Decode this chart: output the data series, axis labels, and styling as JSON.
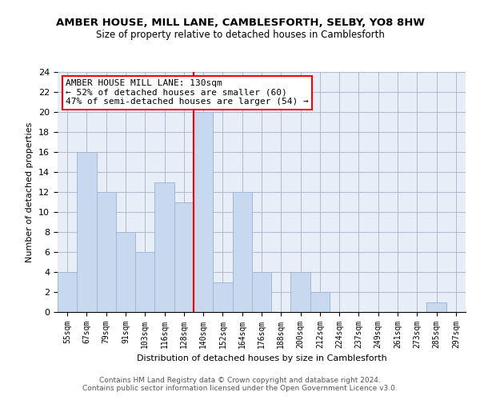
{
  "title1": "AMBER HOUSE, MILL LANE, CAMBLESFORTH, SELBY, YO8 8HW",
  "title2": "Size of property relative to detached houses in Camblesforth",
  "xlabel": "Distribution of detached houses by size in Camblesforth",
  "ylabel": "Number of detached properties",
  "categories": [
    "55sqm",
    "67sqm",
    "79sqm",
    "91sqm",
    "103sqm",
    "116sqm",
    "128sqm",
    "140sqm",
    "152sqm",
    "164sqm",
    "176sqm",
    "188sqm",
    "200sqm",
    "212sqm",
    "224sqm",
    "237sqm",
    "249sqm",
    "261sqm",
    "273sqm",
    "285sqm",
    "297sqm"
  ],
  "values": [
    4,
    16,
    12,
    8,
    6,
    13,
    11,
    20,
    3,
    12,
    4,
    0,
    4,
    2,
    0,
    0,
    0,
    0,
    0,
    1,
    0
  ],
  "bar_color": "#c8d8ee",
  "bar_edge_color": "#a0b8d8",
  "annotation_line0": "AMBER HOUSE MILL LANE: 130sqm",
  "annotation_line1": "← 52% of detached houses are smaller (60)",
  "annotation_line2": "47% of semi-detached houses are larger (54) →",
  "annotation_box_facecolor": "white",
  "annotation_box_edgecolor": "red",
  "vline_color": "red",
  "vline_x_index": 7,
  "ylim": [
    0,
    24
  ],
  "yticks": [
    0,
    2,
    4,
    6,
    8,
    10,
    12,
    14,
    16,
    18,
    20,
    22,
    24
  ],
  "grid_color": "#b0b8cc",
  "bg_color": "#e8eef8",
  "footer1": "Contains HM Land Registry data © Crown copyright and database right 2024.",
  "footer2": "Contains public sector information licensed under the Open Government Licence v3.0."
}
